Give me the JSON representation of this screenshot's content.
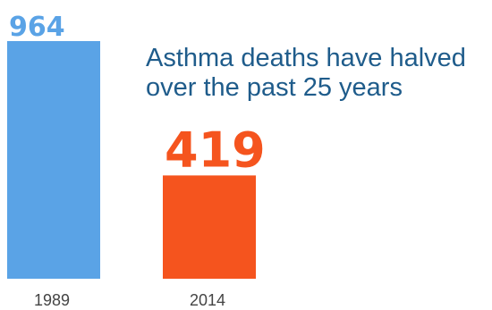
{
  "chart_data": {
    "type": "bar",
    "title": [
      "Asthma deaths have halved",
      "over the past 25 years"
    ],
    "categories": [
      "1989",
      "2014"
    ],
    "values": [
      964,
      419
    ],
    "value_labels": [
      "964",
      "419"
    ],
    "ylim": [
      0,
      964
    ],
    "grid": false,
    "colors": [
      "#5aa3e6",
      "#f5541e"
    ],
    "label_colors": [
      "#5aa3e6",
      "#f5541e"
    ],
    "title_color": "#1f5c8b"
  }
}
